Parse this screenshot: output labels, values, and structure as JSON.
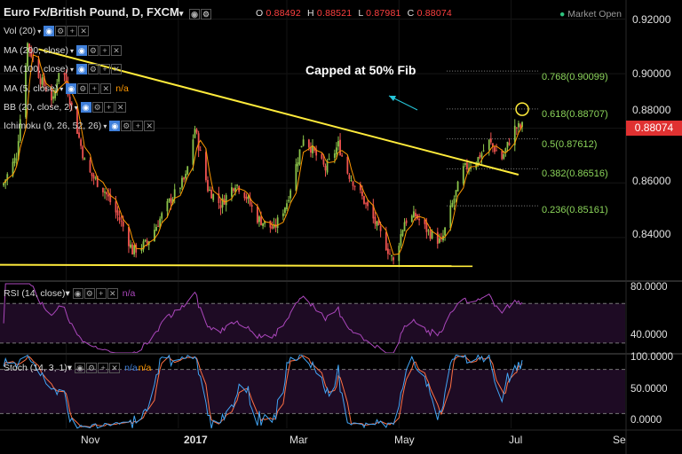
{
  "header": {
    "symbol_title": "Euro Fx/British Pound, D, FXCM",
    "ohlc": {
      "o_label": "O",
      "o_value": "0.88492",
      "h_label": "H",
      "h_value": "0.88521",
      "l_label": "L",
      "l_value": "0.87981",
      "c_label": "C",
      "c_value": "0.88074"
    },
    "market_status": "Market Open"
  },
  "indicators": [
    {
      "label": "Vol (20)",
      "na": ""
    },
    {
      "label": "MA (200, close)",
      "na": ""
    },
    {
      "label": "MA (100, close)",
      "na": ""
    },
    {
      "label": "MA (5, close)",
      "na": "n/a"
    },
    {
      "label": "BB (20, close, 2)",
      "na": ""
    },
    {
      "label": "Ichimoku (9, 26, 52, 26)",
      "na": ""
    }
  ],
  "annotation": "Capped at 50% Fib",
  "fib_levels": [
    {
      "label": "0.768(0.90099)",
      "ratio": 0.768,
      "price": 0.90099
    },
    {
      "label": "0.618(0.88707)",
      "ratio": 0.618,
      "price": 0.88707
    },
    {
      "label": "0.5(0.87612)",
      "ratio": 0.5,
      "price": 0.87612
    },
    {
      "label": "0.382(0.86516)",
      "ratio": 0.382,
      "price": 0.86516
    },
    {
      "label": "0.236(0.85161)",
      "ratio": 0.236,
      "price": 0.85161
    }
  ],
  "price_axis": [
    "0.92000",
    "0.90000",
    "0.88000",
    "0.86000",
    "0.84000"
  ],
  "last_price": "0.88074",
  "time_axis": [
    {
      "label": "Nov",
      "bold": false
    },
    {
      "label": "2017",
      "bold": true
    },
    {
      "label": "Mar",
      "bold": false
    },
    {
      "label": "May",
      "bold": false
    },
    {
      "label": "Jul",
      "bold": false
    },
    {
      "label": "Se",
      "bold": false
    }
  ],
  "rsi_panel": {
    "title": "RSI (14, close)",
    "na": "n/a",
    "axis": [
      "80.0000",
      "40.0000"
    ]
  },
  "stoch_panel": {
    "title": "Stoch (14, 3, 1)",
    "na_k": "n/a",
    "na_d": "n/a",
    "axis": [
      "100.0000",
      "50.0000",
      "0.0000"
    ]
  },
  "colors": {
    "background": "#000000",
    "bull": "#8bc34a",
    "bear": "#ef5350",
    "trendline": "#ffeb3b",
    "fib": "#8bd45a",
    "ma5": "#ff9800",
    "rsi": "#ab47bc",
    "stoch_k": "#42a5f5",
    "stoch_d": "#ff7043",
    "price_badge": "#e03131",
    "annotation_arrow": "#26c6da"
  },
  "chart_data": {
    "type": "candlestick",
    "title": "Euro Fx/British Pound, D, FXCM",
    "y_range": [
      0.825,
      0.927
    ],
    "x_range": [
      "2016-09-26",
      "2017-09-01"
    ],
    "close_path": [
      {
        "date": "2016-09-28",
        "close": 0.86
      },
      {
        "date": "2016-10-05",
        "close": 0.87
      },
      {
        "date": "2016-10-11",
        "close": 0.911
      },
      {
        "date": "2016-10-18",
        "close": 0.898
      },
      {
        "date": "2016-10-25",
        "close": 0.89
      },
      {
        "date": "2016-10-29",
        "close": 0.905
      },
      {
        "date": "2016-11-05",
        "close": 0.885
      },
      {
        "date": "2016-11-12",
        "close": 0.865
      },
      {
        "date": "2016-11-22",
        "close": 0.857
      },
      {
        "date": "2016-12-02",
        "close": 0.844
      },
      {
        "date": "2016-12-07",
        "close": 0.835
      },
      {
        "date": "2016-12-15",
        "close": 0.838
      },
      {
        "date": "2016-12-27",
        "close": 0.853
      },
      {
        "date": "2017-01-05",
        "close": 0.862
      },
      {
        "date": "2017-01-10",
        "close": 0.88
      },
      {
        "date": "2017-01-17",
        "close": 0.858
      },
      {
        "date": "2017-01-24",
        "close": 0.852
      },
      {
        "date": "2017-02-01",
        "close": 0.86
      },
      {
        "date": "2017-02-06",
        "close": 0.856
      },
      {
        "date": "2017-02-13",
        "close": 0.847
      },
      {
        "date": "2017-02-22",
        "close": 0.843
      },
      {
        "date": "2017-03-01",
        "close": 0.853
      },
      {
        "date": "2017-03-10",
        "close": 0.877
      },
      {
        "date": "2017-03-16",
        "close": 0.871
      },
      {
        "date": "2017-03-22",
        "close": 0.865
      },
      {
        "date": "2017-03-29",
        "close": 0.874
      },
      {
        "date": "2017-04-03",
        "close": 0.864
      },
      {
        "date": "2017-04-10",
        "close": 0.856
      },
      {
        "date": "2017-04-19",
        "close": 0.844
      },
      {
        "date": "2017-04-24",
        "close": 0.837
      },
      {
        "date": "2017-04-28",
        "close": 0.831
      },
      {
        "date": "2017-05-04",
        "close": 0.846
      },
      {
        "date": "2017-05-10",
        "close": 0.848
      },
      {
        "date": "2017-05-17",
        "close": 0.842
      },
      {
        "date": "2017-05-24",
        "close": 0.838
      },
      {
        "date": "2017-05-29",
        "close": 0.85
      },
      {
        "date": "2017-06-05",
        "close": 0.865
      },
      {
        "date": "2017-06-12",
        "close": 0.868
      },
      {
        "date": "2017-06-19",
        "close": 0.875
      },
      {
        "date": "2017-06-26",
        "close": 0.869
      },
      {
        "date": "2017-07-03",
        "close": 0.88
      },
      {
        "date": "2017-07-07",
        "close": 0.8807
      }
    ],
    "trendlines": [
      {
        "name": "descending resistance",
        "from": {
          "date": "2016-10-17",
          "price": 0.909
        },
        "to": {
          "date": "2017-07-05",
          "price": 0.863
        }
      },
      {
        "name": "horizontal support",
        "from": {
          "date": "2016-09-26",
          "price": 0.83
        },
        "to": {
          "date": "2017-06-10",
          "price": 0.8295
        }
      }
    ],
    "highlight": {
      "date": "2017-07-07",
      "price": 0.887
    },
    "rsi": {
      "range": [
        20,
        90
      ],
      "bands": [
        70,
        30
      ],
      "last": 68
    },
    "stochastic": {
      "range": [
        0,
        100
      ],
      "bands": [
        80,
        20
      ],
      "k_last": 88,
      "d_last": 78
    }
  }
}
